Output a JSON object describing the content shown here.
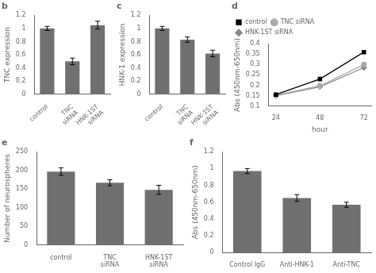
{
  "chart_data": [
    {
      "type": "bar",
      "title": "b",
      "categories": [
        "control",
        "TNC\nsiRNA",
        "HNK-1ST\nsiRNA"
      ],
      "values": [
        1.0,
        0.5,
        1.05
      ],
      "errors": [
        0.03,
        0.05,
        0.06
      ],
      "ylabel": "TNC expression",
      "color": "#707070",
      "ylim": [
        0,
        1.2
      ],
      "yticks": [
        0,
        0.2,
        0.4,
        0.6,
        0.8,
        1.0,
        1.2
      ],
      "grid": false
    },
    {
      "type": "bar",
      "title": "c",
      "categories": [
        "control",
        "TNC\nsiRNA",
        "HNK-1ST\nsiRNA"
      ],
      "values": [
        1.0,
        0.83,
        0.62
      ],
      "errors": [
        0.03,
        0.04,
        0.05
      ],
      "ylabel": "HNK-1 expression",
      "color": "#707070",
      "ylim": [
        0,
        1.2
      ],
      "yticks": [
        0,
        0.2,
        0.4,
        0.6,
        0.8,
        1.0,
        1.2
      ],
      "grid": false
    },
    {
      "type": "line",
      "title": "d",
      "x": [
        24,
        48,
        72
      ],
      "xlabel": "hour",
      "ylabel": "Abs (450nm-650nm)",
      "xlim": [
        20,
        76
      ],
      "xticks": [
        24,
        48,
        72
      ],
      "ylim": [
        0.1,
        0.4
      ],
      "yticks": [
        0.1,
        0.15,
        0.2,
        0.25,
        0.3,
        0.35,
        0.4
      ],
      "legend": "upper left",
      "grid": false,
      "series": [
        {
          "name": "control",
          "color": "#000000",
          "marker": "square",
          "values": [
            0.155,
            0.23,
            0.36
          ]
        },
        {
          "name": "TNC siRNA",
          "color": "#aaaaaa",
          "marker": "circle",
          "values": [
            0.152,
            0.197,
            0.3
          ]
        },
        {
          "name": "HNK-1ST siRNA",
          "color": "#888888",
          "marker": "diamond",
          "values": [
            0.15,
            0.193,
            0.285
          ]
        }
      ]
    },
    {
      "type": "bar",
      "title": "e",
      "categories": [
        "control",
        "TNC\nsiRNA",
        "HNK-1ST\nsiRNA"
      ],
      "values": [
        197,
        167,
        148
      ],
      "errors": [
        10,
        8,
        12
      ],
      "ylabel": "Number of neurospheres",
      "color": "#707070",
      "ylim": [
        0,
        250
      ],
      "yticks": [
        0,
        50,
        100,
        150,
        200,
        250
      ],
      "grid": false
    },
    {
      "type": "bar",
      "title": "f",
      "categories": [
        "Control IgG",
        "Anti-HNK-1",
        "Anti-TNC"
      ],
      "values": [
        0.97,
        0.65,
        0.57
      ],
      "errors": [
        0.03,
        0.04,
        0.03
      ],
      "ylabel": "Abs (450nm-650nm)",
      "color": "#707070",
      "ylim": [
        0,
        1.2
      ],
      "yticks": [
        0,
        0.2,
        0.4,
        0.6,
        0.8,
        1.0,
        1.2
      ],
      "grid": false
    }
  ]
}
